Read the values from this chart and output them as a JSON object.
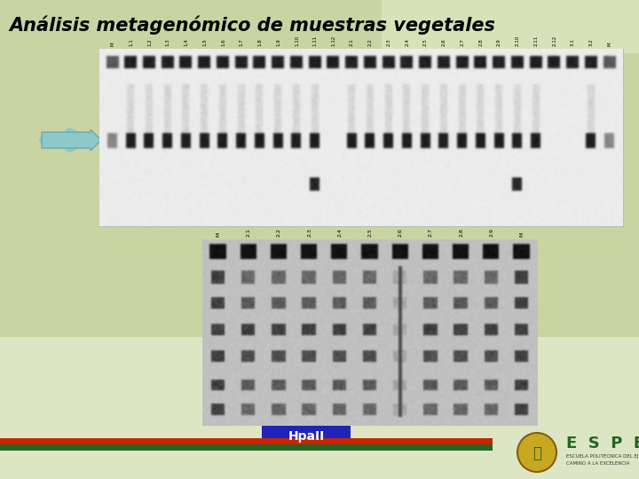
{
  "title": "Análisis metagenómico de muestras vegetales",
  "title_fontsize": 15,
  "title_fontstyle": "italic",
  "title_fontweight": "bold",
  "bg_top_color": "#c5d19e",
  "bg_bottom_color": "#e8eedd",
  "hpall_label": "HpaII",
  "hpall_bg": "#2222bb",
  "hpall_text_color": "white",
  "espe_letters": "E  S  P  E",
  "espe_sub1": "ESCUELA POLITÉCNICA DEL EJÉRCITO",
  "espe_sub2": "CAMINO A LA EXCELENCIA",
  "arrow_color": "#8ec8c8",
  "arrow_edge": "#6aacac",
  "footer_red": "#cc2200",
  "footer_green": "#226622",
  "gel1_labels": [
    "M",
    "1.1",
    "1.2",
    "1.3",
    "1.4",
    "1.5",
    "1.6",
    "1.7",
    "1.8",
    "1.9",
    "1.10",
    "1.11",
    "1.12",
    "2.1",
    "2.2",
    "2.3",
    "2.4",
    "2.5",
    "2.6",
    "2.7",
    "2.8",
    "2.9",
    "2.10",
    "2.11",
    "2.12",
    "3.1",
    "3.2",
    "M"
  ],
  "gel2_labels": [
    "M",
    "2.1",
    "2.2",
    "2.3",
    "2.4",
    "2.5",
    "2.6",
    "2.7",
    "2.8",
    "2.9",
    "M"
  ]
}
